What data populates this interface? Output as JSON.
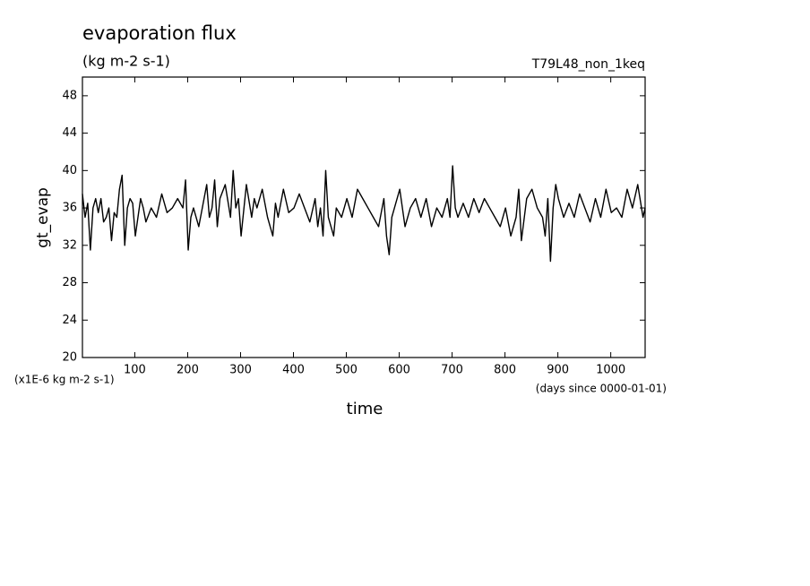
{
  "chart_data": {
    "type": "line",
    "title": "evaporation flux",
    "subtitle": "(kg m-2 s-1)",
    "run_label": "T79L48_non_1keq",
    "y_label": "gt_evap",
    "y_unit_label": "(x1E-6 kg m-2 s-1)",
    "x_label": "time",
    "x_unit_label": "(days since 0000-01-01)",
    "x": [
      1,
      6,
      11,
      16,
      21,
      26,
      31,
      36,
      41,
      46,
      51,
      56,
      61,
      66,
      71,
      76,
      81,
      86,
      91,
      96,
      101,
      106,
      111,
      116,
      121,
      131,
      141,
      151,
      161,
      171,
      181,
      191,
      196,
      201,
      206,
      211,
      221,
      231,
      236,
      241,
      246,
      251,
      256,
      261,
      271,
      281,
      286,
      291,
      296,
      301,
      311,
      321,
      326,
      331,
      341,
      351,
      361,
      366,
      371,
      381,
      391,
      401,
      411,
      421,
      431,
      441,
      446,
      451,
      456,
      461,
      466,
      471,
      476,
      481,
      491,
      501,
      511,
      521,
      531,
      541,
      551,
      561,
      571,
      576,
      581,
      586,
      591,
      601,
      611,
      621,
      631,
      641,
      651,
      661,
      671,
      681,
      691,
      696,
      701,
      706,
      711,
      721,
      731,
      741,
      751,
      761,
      771,
      781,
      791,
      801,
      811,
      821,
      826,
      831,
      841,
      851,
      861,
      871,
      876,
      881,
      886,
      891,
      896,
      901,
      911,
      921,
      931,
      941,
      951,
      961,
      971,
      981,
      991,
      1001,
      1011,
      1021,
      1031,
      1041,
      1051,
      1061,
      1065
    ],
    "series": [
      {
        "name": "gt_evap",
        "color": "#000000",
        "values": [
          37.5,
          35,
          36.5,
          31.5,
          36,
          37,
          35.5,
          37,
          34.5,
          35,
          36,
          32.5,
          35.5,
          35,
          38,
          39.5,
          32,
          36,
          37,
          36.5,
          33,
          35,
          37,
          36,
          34.5,
          36,
          35,
          37.5,
          35.5,
          36,
          37,
          36,
          39,
          31.5,
          35,
          36,
          34,
          37,
          38.5,
          35,
          36,
          39,
          34,
          37,
          38.5,
          35,
          40,
          36,
          37,
          33,
          38.5,
          35,
          37,
          36,
          38,
          35,
          33,
          36.5,
          35,
          38,
          35.5,
          36,
          37.5,
          36,
          34.5,
          37,
          34,
          36,
          33,
          40,
          35,
          34,
          33,
          36,
          35,
          37,
          35,
          38,
          37,
          36,
          35,
          34,
          37,
          33,
          31,
          35,
          36,
          38,
          34,
          36,
          37,
          35,
          37,
          34,
          36,
          35,
          37,
          35,
          40.5,
          36,
          35,
          36.5,
          35,
          37,
          35.5,
          37,
          36,
          35,
          34,
          36,
          33,
          35,
          38,
          32.5,
          37,
          38,
          36,
          35,
          33,
          37,
          30.3,
          36,
          38.5,
          37,
          35,
          36.5,
          35,
          37.5,
          36,
          34.5,
          37,
          35,
          38,
          35.5,
          36,
          35,
          38,
          36,
          38.5,
          35,
          36
        ]
      }
    ],
    "xlim": [
      1,
      1065
    ],
    "ylim": [
      20,
      50
    ],
    "xticks": [
      100,
      200,
      300,
      400,
      500,
      600,
      700,
      800,
      900,
      1000
    ],
    "yticks": [
      20,
      24,
      28,
      32,
      36,
      40,
      44,
      48
    ]
  }
}
